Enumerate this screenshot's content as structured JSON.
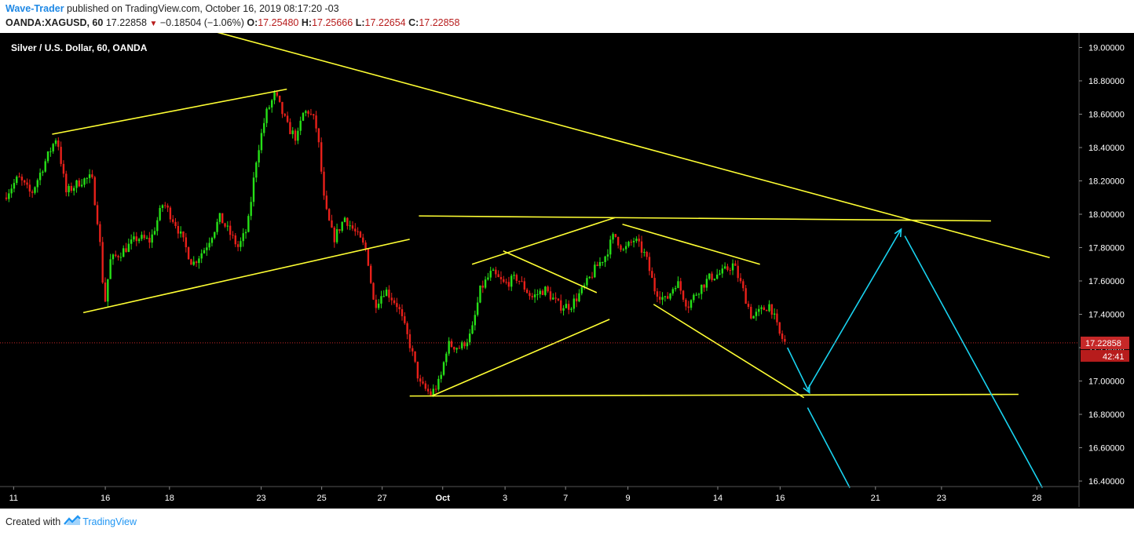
{
  "header": {
    "author": "Wave-Trader",
    "published_text": " published on TradingView.com, October 16, 2019 08:17:20 -03",
    "symbol": "OANDA:XAGUSD, 60",
    "last": "17.22858",
    "change": "−0.18504 (−1.06%)",
    "o_label": "O:",
    "o_value": "17.25480",
    "h_label": "H:",
    "h_value": "17.25666",
    "l_label": "L:",
    "l_value": "17.22654",
    "c_label": "C:",
    "c_value": "17.22858"
  },
  "footer": {
    "created_with": "Created with",
    "brand": "TradingView"
  },
  "colors": {
    "up": "#26e017",
    "down": "#e8201a",
    "trendline": "#ffff33",
    "projection": "#19d3f0",
    "price_line": "#c62828",
    "background": "#000000"
  },
  "chart_data": {
    "type": "candlestick",
    "title": "Silver / U.S. Dollar, 60, OANDA",
    "xlabel": "",
    "ylabel": "",
    "ylim": [
      16.36,
      19.1
    ],
    "price_ticks": [
      "19.00000",
      "18.80000",
      "18.60000",
      "18.40000",
      "18.20000",
      "18.00000",
      "17.80000",
      "17.60000",
      "17.40000",
      "17.20000",
      "17.00000",
      "16.80000",
      "16.60000",
      "16.40000"
    ],
    "x_ticks": [
      "11",
      "16",
      "18",
      "23",
      "25",
      "27",
      "Oct",
      "3",
      "7",
      "9",
      "14",
      "16",
      "21",
      "23",
      "28"
    ],
    "current_price": "17.22858",
    "countdown": "42:41",
    "price_path": [
      {
        "x": 0,
        "y": 18.1
      },
      {
        "x": 0.8,
        "y": 18.22
      },
      {
        "x": 1.5,
        "y": 18.12
      },
      {
        "x": 2.2,
        "y": 18.3
      },
      {
        "x": 2.9,
        "y": 18.47
      },
      {
        "x": 3.4,
        "y": 18.13
      },
      {
        "x": 4.2,
        "y": 18.2
      },
      {
        "x": 4.8,
        "y": 18.22
      },
      {
        "x": 5.2,
        "y": 17.9
      },
      {
        "x": 5.5,
        "y": 17.45
      },
      {
        "x": 5.8,
        "y": 17.72
      },
      {
        "x": 6.5,
        "y": 17.78
      },
      {
        "x": 7.3,
        "y": 17.86
      },
      {
        "x": 8.0,
        "y": 17.84
      },
      {
        "x": 8.7,
        "y": 18.07
      },
      {
        "x": 9.4,
        "y": 17.94
      },
      {
        "x": 10.3,
        "y": 17.7
      },
      {
        "x": 11.0,
        "y": 17.8
      },
      {
        "x": 11.8,
        "y": 17.98
      },
      {
        "x": 12.8,
        "y": 17.8
      },
      {
        "x": 13.3,
        "y": 17.92
      },
      {
        "x": 13.8,
        "y": 18.35
      },
      {
        "x": 14.3,
        "y": 18.6
      },
      {
        "x": 14.8,
        "y": 18.72
      },
      {
        "x": 15.5,
        "y": 18.52
      },
      {
        "x": 16.0,
        "y": 18.45
      },
      {
        "x": 16.3,
        "y": 18.6
      },
      {
        "x": 16.6,
        "y": 18.62
      },
      {
        "x": 17.0,
        "y": 18.55
      },
      {
        "x": 17.2,
        "y": 18.4
      },
      {
        "x": 17.5,
        "y": 18.05
      },
      {
        "x": 18.0,
        "y": 17.85
      },
      {
        "x": 18.6,
        "y": 17.98
      },
      {
        "x": 19.3,
        "y": 17.87
      },
      {
        "x": 19.8,
        "y": 17.78
      },
      {
        "x": 20.2,
        "y": 17.45
      },
      {
        "x": 20.8,
        "y": 17.55
      },
      {
        "x": 21.5,
        "y": 17.45
      },
      {
        "x": 22.2,
        "y": 17.2
      },
      {
        "x": 22.7,
        "y": 16.98
      },
      {
        "x": 23.3,
        "y": 16.92
      },
      {
        "x": 23.8,
        "y": 17.0
      },
      {
        "x": 24.2,
        "y": 17.22
      },
      {
        "x": 24.9,
        "y": 17.2
      },
      {
        "x": 25.5,
        "y": 17.28
      },
      {
        "x": 26.0,
        "y": 17.55
      },
      {
        "x": 26.6,
        "y": 17.65
      },
      {
        "x": 27.3,
        "y": 17.58
      },
      {
        "x": 28.0,
        "y": 17.62
      },
      {
        "x": 28.8,
        "y": 17.5
      },
      {
        "x": 29.5,
        "y": 17.55
      },
      {
        "x": 30.3,
        "y": 17.45
      },
      {
        "x": 30.9,
        "y": 17.45
      },
      {
        "x": 31.6,
        "y": 17.55
      },
      {
        "x": 32.3,
        "y": 17.68
      },
      {
        "x": 32.8,
        "y": 17.75
      },
      {
        "x": 33.3,
        "y": 17.88
      },
      {
        "x": 33.8,
        "y": 17.78
      },
      {
        "x": 34.4,
        "y": 17.85
      },
      {
        "x": 35.0,
        "y": 17.75
      },
      {
        "x": 35.5,
        "y": 17.55
      },
      {
        "x": 36.1,
        "y": 17.48
      },
      {
        "x": 36.7,
        "y": 17.6
      },
      {
        "x": 37.3,
        "y": 17.45
      },
      {
        "x": 37.9,
        "y": 17.55
      },
      {
        "x": 38.5,
        "y": 17.62
      },
      {
        "x": 39.2,
        "y": 17.65
      },
      {
        "x": 39.8,
        "y": 17.7
      },
      {
        "x": 40.3,
        "y": 17.55
      },
      {
        "x": 40.8,
        "y": 17.38
      },
      {
        "x": 41.3,
        "y": 17.42
      },
      {
        "x": 41.8,
        "y": 17.46
      },
      {
        "x": 42.3,
        "y": 17.28
      },
      {
        "x": 42.6,
        "y": 17.23
      }
    ],
    "trendlines": [
      {
        "from": {
          "x": 2.5,
          "y": 18.48
        },
        "to": {
          "x": 15.3,
          "y": 18.75
        }
      },
      {
        "from": {
          "x": 4.2,
          "y": 17.41
        },
        "to": {
          "x": 22.0,
          "y": 17.85
        }
      },
      {
        "from": {
          "x": 11.2,
          "y": 19.1
        },
        "to": {
          "x": 56.9,
          "y": 17.74
        }
      },
      {
        "from": {
          "x": 22.5,
          "y": 17.99
        },
        "to": {
          "x": 53.7,
          "y": 17.96
        }
      },
      {
        "from": {
          "x": 22.0,
          "y": 16.91
        },
        "to": {
          "x": 55.2,
          "y": 16.92
        }
      },
      {
        "from": {
          "x": 23.2,
          "y": 16.91
        },
        "to": {
          "x": 32.9,
          "y": 17.37
        }
      },
      {
        "from": {
          "x": 25.4,
          "y": 17.7
        },
        "to": {
          "x": 33.2,
          "y": 17.98
        }
      },
      {
        "from": {
          "x": 27.1,
          "y": 17.78
        },
        "to": {
          "x": 32.2,
          "y": 17.53
        }
      },
      {
        "from": {
          "x": 33.6,
          "y": 17.94
        },
        "to": {
          "x": 41.1,
          "y": 17.7
        }
      },
      {
        "from": {
          "x": 35.3,
          "y": 17.46
        },
        "to": {
          "x": 43.5,
          "y": 16.9
        }
      }
    ],
    "projections": [
      {
        "from": {
          "x": 42.6,
          "y": 17.2
        },
        "to": {
          "x": 43.8,
          "y": 16.93
        },
        "arrow": true
      },
      {
        "from": {
          "x": 43.7,
          "y": 16.95
        },
        "to": {
          "x": 48.8,
          "y": 17.91
        },
        "arrow": true
      },
      {
        "from": {
          "x": 49.0,
          "y": 17.87
        },
        "to": {
          "x": 56.5,
          "y": 16.36
        },
        "arrow": false
      },
      {
        "from": {
          "x": 43.7,
          "y": 16.84
        },
        "to": {
          "x": 46.0,
          "y": 16.36
        },
        "arrow": false
      }
    ]
  }
}
